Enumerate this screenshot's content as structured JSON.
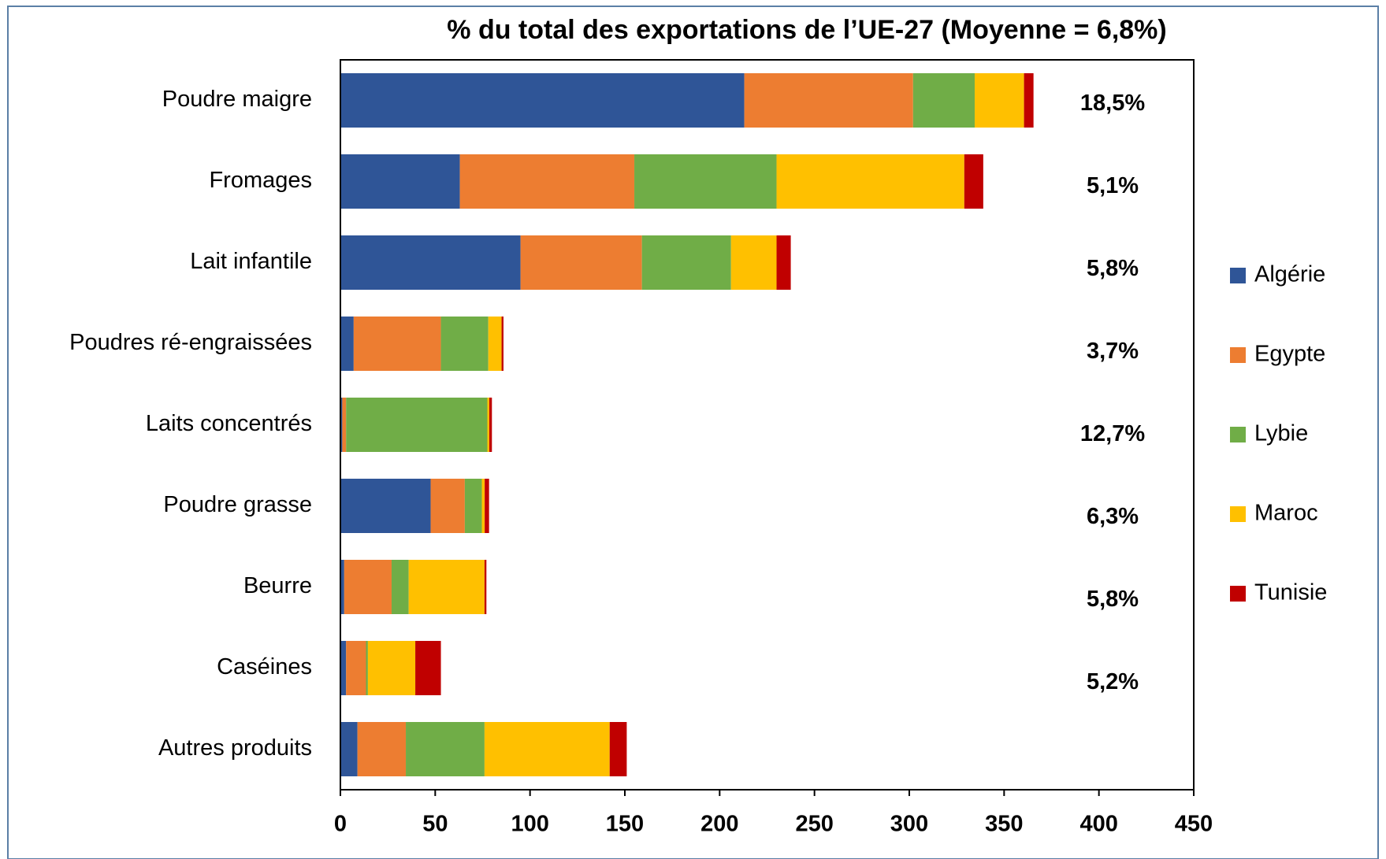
{
  "chart_data": {
    "type": "bar",
    "orientation": "horizontal",
    "stacked": true,
    "title": "% du total des exportations de l’UE-27 (Moyenne = 6,8%)",
    "categories": [
      "Poudre maigre",
      "Fromages",
      "Lait infantile",
      "Poudres ré-engraissées",
      "Laits concentrés",
      "Poudre grasse",
      "Beurre",
      "Caséines",
      "Autres produits"
    ],
    "series": [
      {
        "name": "Algérie",
        "color": "#2f5597",
        "values": [
          213,
          63,
          95,
          7,
          1,
          47.6,
          2,
          3,
          9
        ]
      },
      {
        "name": "Egypte",
        "color": "#ed7d31",
        "values": [
          89,
          92,
          64,
          46,
          2,
          18,
          25,
          10.5,
          25.5
        ]
      },
      {
        "name": "Lybie",
        "color": "#70ad47",
        "values": [
          32.5,
          75,
          47,
          25,
          74.5,
          9,
          9,
          1,
          41.5
        ]
      },
      {
        "name": "Maroc",
        "color": "#ffc000",
        "values": [
          26,
          99,
          24,
          7,
          1,
          1.5,
          40,
          25,
          66
        ]
      },
      {
        "name": "Tunisie",
        "color": "#c00000",
        "values": [
          5,
          10,
          7.5,
          1,
          1.4,
          2.3,
          1,
          13.5,
          9
        ]
      }
    ],
    "annotations": [
      "18,5%",
      "5,1%",
      "5,8%",
      "3,7%",
      "12,7%",
      "6,3%",
      "5,8%",
      "5,2%"
    ],
    "xlim": [
      0,
      450
    ],
    "xticks": [
      0,
      50,
      100,
      150,
      200,
      250,
      300,
      350,
      400,
      450
    ],
    "legend": "right"
  }
}
